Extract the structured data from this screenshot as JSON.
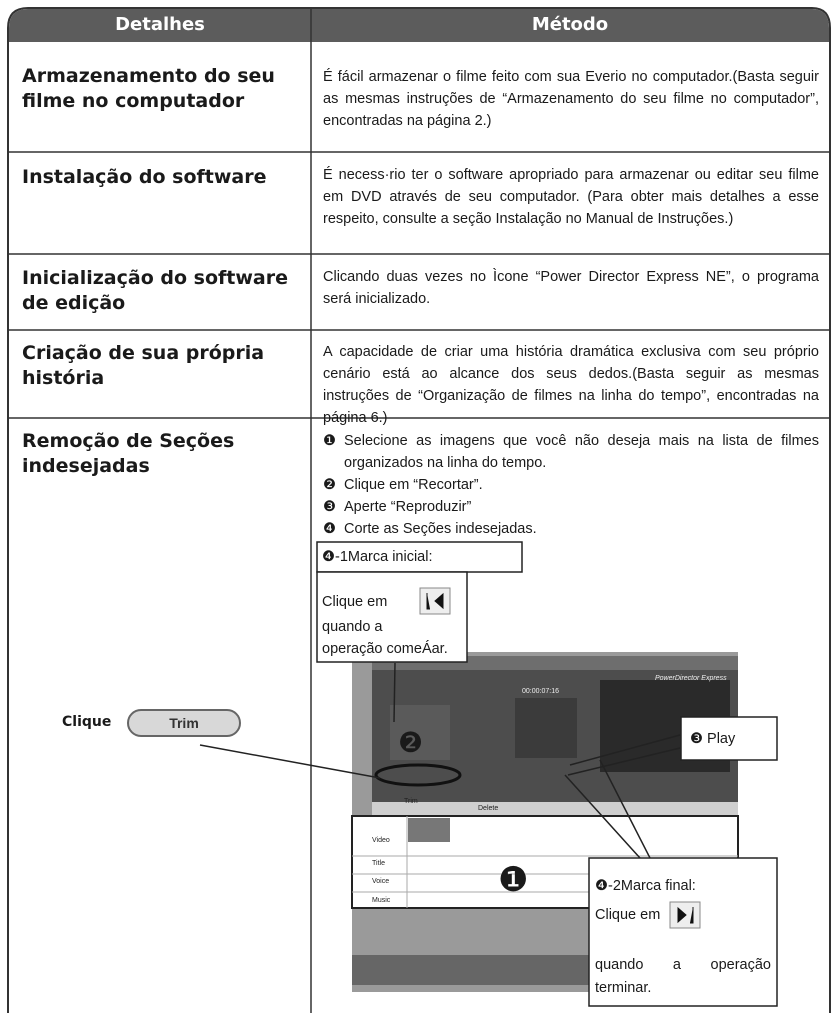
{
  "table": {
    "headers": [
      "Detalhes",
      "Método"
    ],
    "rows": [
      {
        "detail": "Armazenamento do seu filme no computador",
        "method": "É fácil armazenar o filme feito com sua Everio no computador.(Basta seguir as mesmas instruções de “Armazenamento do seu filme no computador”, encontradas na página 2.)"
      },
      {
        "detail": "Instalação do software",
        "method": "É necess·rio ter o software apropriado para armazenar ou editar seu filme em DVD através de seu computador. (Para obter mais detalhes a esse respeito, consulte a seção Instalação no Manual de Instruções.)"
      },
      {
        "detail": "Inicialização do software de edição",
        "method": "Clicando duas vezes no Ìcone “Power Director Express NE”, o programa será inicializado."
      },
      {
        "detail": "Criação de sua própria história",
        "method": "A capacidade de criar uma história dramática exclusiva com seu próprio cenário está ao alcance dos seus dedos.(Basta seguir as mesmas instruções de “Organização de filmes na linha do tempo”, encontradas na página 6.)"
      },
      {
        "detail": "Remoção de Seções indesejadas",
        "steps": [
          {
            "marker": "❶",
            "text": "Selecione as imagens que você não deseja mais na lista de filmes organizados na linha do tempo."
          },
          {
            "marker": "❷",
            "text": "Clique em “Recortar”."
          },
          {
            "marker": "❸",
            "text": "Aperte “Reproduzir”"
          },
          {
            "marker": "❹",
            "text": "Corte as Seções indesejadas."
          }
        ]
      }
    ]
  },
  "figure": {
    "clique_label": "Clique",
    "trim_button": "Trim",
    "callout_start": {
      "title": "❹-1Marca inicial:",
      "lines": [
        "Clique em",
        "quando a",
        "operação comeÁar."
      ]
    },
    "callout_play": "❸ Play",
    "callout_end": {
      "title": "❹-2Marca final:",
      "lines": [
        "Clique em",
        "quando a operação",
        "terminar."
      ]
    },
    "badges": [
      "❶",
      "❷"
    ],
    "screenshot": {
      "app_title": "PowerDirector Express",
      "buttons": [
        "Trim",
        "Delete"
      ],
      "tracks": [
        "Video",
        "Title",
        "Voice",
        "Music"
      ],
      "timecode": "00:00:07:16"
    }
  }
}
